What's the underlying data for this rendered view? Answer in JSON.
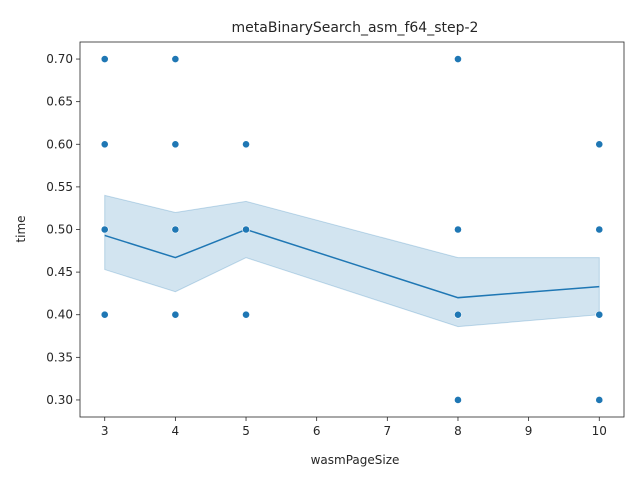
{
  "chart_data": {
    "type": "scatter",
    "title": "metaBinarySearch_asm_f64_step-2",
    "xlabel": "wasmPageSize",
    "ylabel": "time",
    "xlim": [
      2.65,
      10.35
    ],
    "ylim": [
      0.28,
      0.72
    ],
    "xticks": [
      3,
      4,
      5,
      6,
      7,
      8,
      9,
      10
    ],
    "yticks": [
      0.3,
      0.35,
      0.4,
      0.45,
      0.5,
      0.55,
      0.6,
      0.65,
      0.7
    ],
    "ytick_labels": [
      "0.30",
      "0.35",
      "0.40",
      "0.45",
      "0.50",
      "0.55",
      "0.60",
      "0.65",
      "0.70"
    ],
    "xtick_labels": [
      "3",
      "4",
      "5",
      "6",
      "7",
      "8",
      "9",
      "10"
    ],
    "grid": false,
    "color": "#1f77b4",
    "points": [
      {
        "x": 3,
        "y": 0.7
      },
      {
        "x": 3,
        "y": 0.6
      },
      {
        "x": 3,
        "y": 0.5
      },
      {
        "x": 3,
        "y": 0.4
      },
      {
        "x": 4,
        "y": 0.7
      },
      {
        "x": 4,
        "y": 0.6
      },
      {
        "x": 4,
        "y": 0.5
      },
      {
        "x": 4,
        "y": 0.4
      },
      {
        "x": 5,
        "y": 0.6
      },
      {
        "x": 5,
        "y": 0.5
      },
      {
        "x": 5,
        "y": 0.4
      },
      {
        "x": 8,
        "y": 0.7
      },
      {
        "x": 8,
        "y": 0.5
      },
      {
        "x": 8,
        "y": 0.4
      },
      {
        "x": 8,
        "y": 0.3
      },
      {
        "x": 10,
        "y": 0.6
      },
      {
        "x": 10,
        "y": 0.5
      },
      {
        "x": 10,
        "y": 0.4
      },
      {
        "x": 10,
        "y": 0.3
      }
    ],
    "mean_line": [
      {
        "x": 3,
        "y": 0.493
      },
      {
        "x": 4,
        "y": 0.467
      },
      {
        "x": 5,
        "y": 0.5
      },
      {
        "x": 8,
        "y": 0.42
      },
      {
        "x": 10,
        "y": 0.433
      }
    ],
    "confidence_band": [
      {
        "x": 3,
        "low": 0.453,
        "high": 0.54
      },
      {
        "x": 4,
        "low": 0.427,
        "high": 0.52
      },
      {
        "x": 5,
        "low": 0.467,
        "high": 0.533
      },
      {
        "x": 8,
        "low": 0.386,
        "high": 0.467
      },
      {
        "x": 10,
        "low": 0.4,
        "high": 0.467
      }
    ]
  }
}
